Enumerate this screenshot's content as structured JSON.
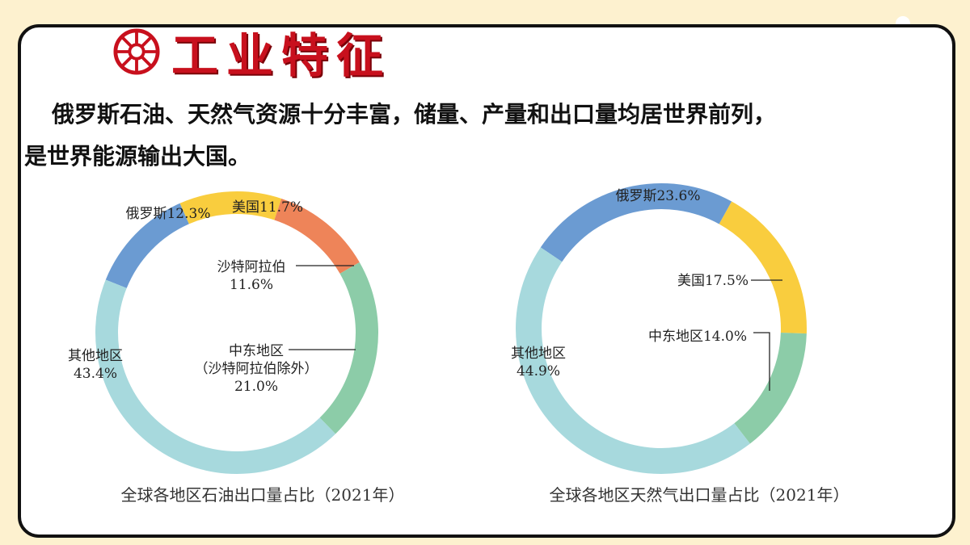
{
  "header": {
    "title": "工业特征",
    "icon": "sun-wheel-icon"
  },
  "intro": {
    "line1": "俄罗斯石油、天然气资源十分丰富，储量、产量和出口量均居世界前列，",
    "line2": "是世界能源输出大国。"
  },
  "colors": {
    "accent": "#c8101d",
    "background": "#fdf1cf"
  },
  "chart_data": [
    {
      "type": "donut",
      "caption": "全球各地区石油出口量占比（2021年）",
      "slices": [
        {
          "name": "俄罗斯",
          "value": 12.3,
          "label_lines": [
            "俄罗斯12.3%"
          ],
          "color": "#6b9bd2"
        },
        {
          "name": "美国",
          "value": 11.7,
          "label_lines": [
            "美国11.7%"
          ],
          "color": "#f9cd3e"
        },
        {
          "name": "沙特阿拉伯",
          "value": 11.6,
          "label_lines": [
            "沙特阿拉伯",
            "11.6%"
          ],
          "color": "#ee8459"
        },
        {
          "name": "中东地区（沙特阿拉伯除外）",
          "value": 21.0,
          "label_lines": [
            "中东地区",
            "（沙特阿拉伯除外）",
            "21.0%"
          ],
          "color": "#8ccca8"
        },
        {
          "name": "其他地区",
          "value": 43.4,
          "label_lines": [
            "其他地区",
            "43.4%"
          ],
          "color": "#a7d9dd"
        }
      ]
    },
    {
      "type": "donut",
      "caption": "全球各地区天然气出口量占比（2021年）",
      "slices": [
        {
          "name": "俄罗斯",
          "value": 23.6,
          "label_lines": [
            "俄罗斯23.6%"
          ],
          "color": "#6b9bd2"
        },
        {
          "name": "美国",
          "value": 17.5,
          "label_lines": [
            "美国17.5%"
          ],
          "color": "#f9cd3e"
        },
        {
          "name": "中东地区",
          "value": 14.0,
          "label_lines": [
            "中东地区14.0%"
          ],
          "color": "#8ccca8"
        },
        {
          "name": "其他地区",
          "value": 44.9,
          "label_lines": [
            "其他地区",
            "44.9%"
          ],
          "color": "#a7d9dd"
        }
      ]
    }
  ]
}
